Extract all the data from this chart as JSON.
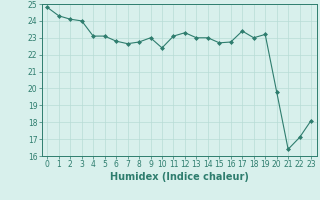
{
  "x": [
    0,
    1,
    2,
    3,
    4,
    5,
    6,
    7,
    8,
    9,
    10,
    11,
    12,
    13,
    14,
    15,
    16,
    17,
    18,
    19,
    20,
    21,
    22,
    23
  ],
  "y": [
    24.8,
    24.3,
    24.1,
    24.0,
    23.1,
    23.1,
    22.8,
    22.65,
    22.75,
    23.0,
    22.4,
    23.1,
    23.3,
    23.0,
    23.0,
    22.7,
    22.75,
    23.4,
    23.0,
    23.2,
    19.8,
    16.4,
    17.1,
    18.1
  ],
  "line_color": "#2e7d6e",
  "marker_color": "#2e7d6e",
  "bg_color": "#d8f0ec",
  "grid_color": "#b8dcd6",
  "xlabel": "Humidex (Indice chaleur)",
  "ylim": [
    16,
    25
  ],
  "xlim_min": -0.5,
  "xlim_max": 23.5,
  "yticks": [
    16,
    17,
    18,
    19,
    20,
    21,
    22,
    23,
    24,
    25
  ],
  "xticks": [
    0,
    1,
    2,
    3,
    4,
    5,
    6,
    7,
    8,
    9,
    10,
    11,
    12,
    13,
    14,
    15,
    16,
    17,
    18,
    19,
    20,
    21,
    22,
    23
  ],
  "tick_label_size": 5.5,
  "xlabel_size": 7.0,
  "xlabel_bold": true
}
